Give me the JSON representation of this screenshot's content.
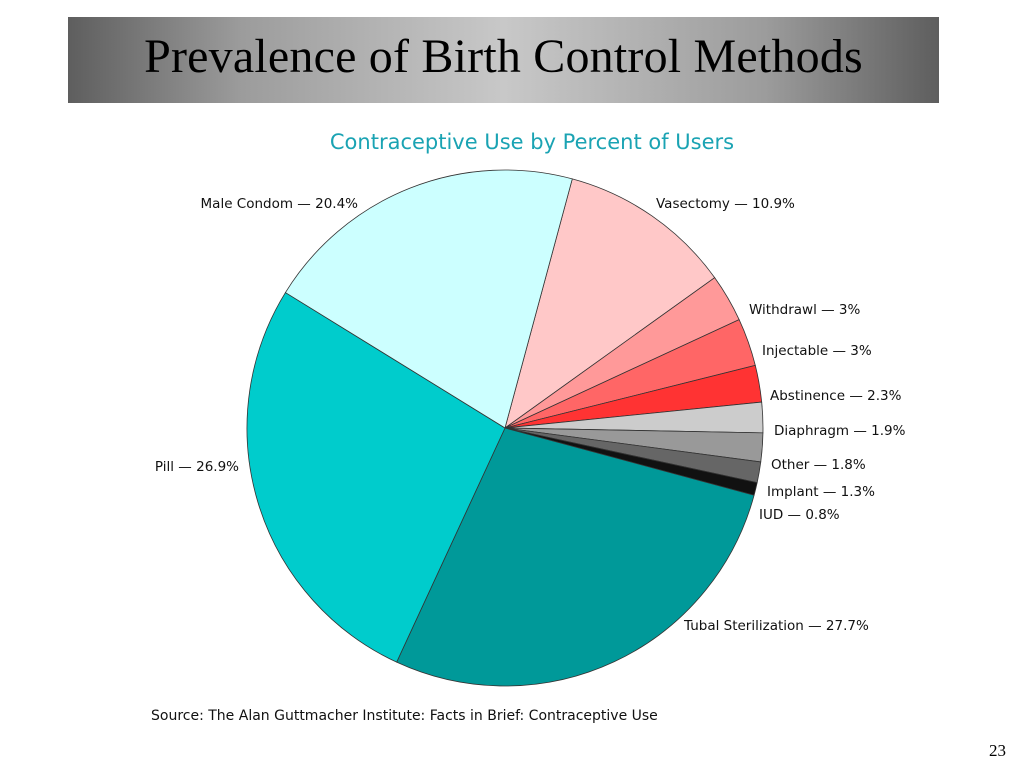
{
  "slide": {
    "title": "Prevalence of Birth Control Methods",
    "source": "Source: The Alan Guttmacher Institute: Facts in Brief: Contraceptive Use",
    "page_number": "23"
  },
  "chart_data": {
    "type": "pie",
    "title": "Contraceptive Use by Percent of Users",
    "slices": [
      {
        "name": "Vasectomy",
        "label": "Vasectomy — 10.9%",
        "value": 10.9,
        "color": "#ffc8c8"
      },
      {
        "name": "Withdrawl",
        "label": "Withdrawl — 3%",
        "value": 3.0,
        "color": "#ff9999"
      },
      {
        "name": "Injectable",
        "label": "Injectable — 3%",
        "value": 3.0,
        "color": "#ff6666"
      },
      {
        "name": "Abstinence",
        "label": "Abstinence — 2.3%",
        "value": 2.3,
        "color": "#ff3333"
      },
      {
        "name": "Diaphragm",
        "label": "Diaphragm — 1.9%",
        "value": 1.9,
        "color": "#cccccc"
      },
      {
        "name": "Other",
        "label": "Other — 1.8%",
        "value": 1.8,
        "color": "#999999"
      },
      {
        "name": "Implant",
        "label": "Implant — 1.3%",
        "value": 1.3,
        "color": "#666666"
      },
      {
        "name": "IUD",
        "label": "IUD — 0.8%",
        "value": 0.8,
        "color": "#111111"
      },
      {
        "name": "Tubal Sterilization",
        "label": "Tubal Sterilization — 27.7%",
        "value": 27.7,
        "color": "#009999"
      },
      {
        "name": "Pill",
        "label": "Pill — 26.9%",
        "value": 26.9,
        "color": "#00cccc"
      },
      {
        "name": "Male Condom",
        "label": "Male Condom — 20.4%",
        "value": 20.4,
        "color": "#ccffff"
      }
    ],
    "start_direction": "upper-right, clockwise",
    "legend": "none (slice labels outside pie)"
  }
}
